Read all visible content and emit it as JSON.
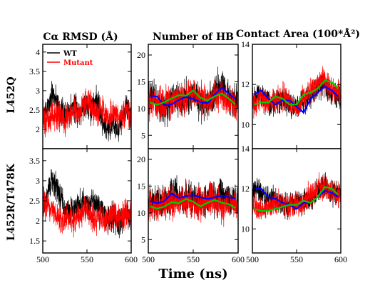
{
  "figure": {
    "xlabel": "Time (ns)",
    "column_titles": [
      "Cα RMSD (Å)",
      "Number of HB",
      "Contact Area (100*Å²)"
    ],
    "row_labels": [
      "L452Q",
      "L452R/T478K"
    ]
  },
  "colors": {
    "wt": "#000000",
    "mutant": "#ff0000",
    "wt_smooth": "#0000ff",
    "mutant_smooth": "#00cc00"
  },
  "chart_data": [
    {
      "type": "line",
      "row": "L452Q",
      "column": "Cα RMSD (Å)",
      "xlim": [
        500,
        600
      ],
      "ylim": [
        1.5,
        4.2
      ],
      "xticks": [
        500,
        550,
        600
      ],
      "yticks": [
        2,
        2.5,
        3,
        3.5,
        4
      ],
      "legend": {
        "placement": "top-left",
        "entries": [
          "WT",
          "Mutant"
        ]
      },
      "series": [
        {
          "name": "WT",
          "color": "#000000",
          "noise": 0.55,
          "x": [
            500,
            505,
            510,
            515,
            520,
            525,
            530,
            535,
            540,
            545,
            550,
            555,
            560,
            565,
            570,
            575,
            580,
            585,
            590,
            595,
            600
          ],
          "y": [
            2.4,
            2.5,
            2.9,
            2.8,
            2.5,
            2.3,
            2.5,
            2.6,
            2.4,
            2.6,
            2.7,
            2.5,
            2.8,
            2.4,
            2.1,
            2.0,
            2.2,
            2.0,
            2.3,
            2.6,
            2.3
          ]
        },
        {
          "name": "Mutant",
          "color": "#ff0000",
          "noise": 0.55,
          "x": [
            500,
            505,
            510,
            515,
            520,
            525,
            530,
            535,
            540,
            545,
            550,
            555,
            560,
            565,
            570,
            575,
            580,
            585,
            590,
            595,
            600
          ],
          "y": [
            2.3,
            2.2,
            2.3,
            2.4,
            2.3,
            2.2,
            2.4,
            2.5,
            2.4,
            2.6,
            2.8,
            2.6,
            2.4,
            2.5,
            2.4,
            2.3,
            2.4,
            2.3,
            2.4,
            2.5,
            2.4
          ]
        }
      ]
    },
    {
      "type": "line",
      "row": "L452Q",
      "column": "Number of HB",
      "xlim": [
        500,
        600
      ],
      "ylim": [
        2.5,
        22
      ],
      "xticks": [
        500,
        550,
        600
      ],
      "yticks": [
        5,
        10,
        15,
        20
      ],
      "series": [
        {
          "name": "WT",
          "color": "#000000",
          "noise": 4.5,
          "x": [
            500,
            505,
            510,
            515,
            520,
            525,
            530,
            535,
            540,
            545,
            550,
            555,
            560,
            565,
            570,
            575,
            580,
            585,
            590,
            595,
            600
          ],
          "y": [
            12,
            12.5,
            11,
            10,
            10.5,
            11.5,
            12,
            11,
            12,
            12,
            12.5,
            11.5,
            11,
            11,
            12,
            13,
            14,
            13,
            12,
            11.5,
            11.5
          ]
        },
        {
          "name": "Mutant",
          "color": "#ff0000",
          "noise": 4.5,
          "x": [
            500,
            505,
            510,
            515,
            520,
            525,
            530,
            535,
            540,
            545,
            550,
            555,
            560,
            565,
            570,
            575,
            580,
            585,
            590,
            595,
            600
          ],
          "y": [
            11,
            11,
            11,
            10.5,
            11,
            11.5,
            12,
            12.5,
            12,
            12.5,
            13,
            12,
            11.5,
            11.5,
            12,
            12.5,
            12.5,
            12,
            11.5,
            11,
            11
          ]
        },
        {
          "name": "WT",
          "color": "#0000ff",
          "width": 2.2,
          "x": [
            502,
            510,
            518,
            526,
            534,
            542,
            550,
            558,
            566,
            574,
            582,
            590,
            597
          ],
          "y": [
            12.4,
            12.2,
            10.6,
            10.8,
            11.6,
            12.2,
            11.8,
            11.2,
            11.0,
            12.6,
            13.9,
            12.7,
            11.8
          ]
        },
        {
          "name": "Mutant",
          "color": "#00cc00",
          "width": 2.2,
          "x": [
            502,
            510,
            518,
            526,
            534,
            542,
            550,
            558,
            566,
            574,
            582,
            590,
            597
          ],
          "y": [
            11.1,
            10.7,
            11.2,
            11.9,
            12.5,
            12.4,
            13.4,
            12.0,
            11.5,
            12.3,
            12.8,
            11.8,
            10.8
          ]
        }
      ]
    },
    {
      "type": "line",
      "row": "L452Q",
      "column": "Contact Area (100*Å²)",
      "xlim": [
        500,
        600
      ],
      "ylim": [
        8.8,
        14
      ],
      "xticks": [
        500,
        550,
        600
      ],
      "yticks": [
        10,
        12,
        14
      ],
      "series": [
        {
          "name": "WT",
          "color": "#000000",
          "noise": 0.9,
          "x": [
            500,
            505,
            510,
            515,
            520,
            525,
            530,
            535,
            540,
            545,
            550,
            555,
            560,
            565,
            570,
            575,
            580,
            585,
            590,
            595,
            600
          ],
          "y": [
            11.2,
            11.5,
            11.5,
            11.2,
            11.0,
            11.1,
            11.2,
            11.3,
            11.0,
            10.9,
            10.8,
            11.0,
            11.2,
            11.4,
            11.6,
            11.9,
            12.0,
            11.7,
            11.5,
            11.4,
            11.3
          ]
        },
        {
          "name": "Mutant",
          "color": "#ff0000",
          "noise": 0.9,
          "x": [
            500,
            505,
            510,
            515,
            520,
            525,
            530,
            535,
            540,
            545,
            550,
            555,
            560,
            565,
            570,
            575,
            580,
            585,
            590,
            595,
            600
          ],
          "y": [
            11.0,
            11.1,
            11.3,
            11.1,
            11.0,
            11.2,
            11.3,
            11.4,
            11.2,
            11.0,
            10.8,
            11.2,
            11.4,
            11.6,
            11.8,
            12.1,
            12.2,
            12.0,
            11.8,
            11.6,
            11.5
          ]
        },
        {
          "name": "WT",
          "color": "#0000ff",
          "width": 2.2,
          "x": [
            502,
            510,
            518,
            526,
            534,
            542,
            550,
            558,
            566,
            574,
            582,
            590,
            597
          ],
          "y": [
            11.5,
            11.7,
            11.3,
            11.0,
            11.2,
            11.2,
            10.9,
            10.6,
            11.3,
            11.6,
            11.9,
            11.7,
            11.4
          ]
        },
        {
          "name": "Mutant",
          "color": "#00cc00",
          "width": 2.2,
          "x": [
            502,
            510,
            518,
            526,
            534,
            542,
            550,
            558,
            566,
            574,
            582,
            590,
            597
          ],
          "y": [
            11.0,
            11.1,
            11.1,
            11.4,
            11.3,
            11.0,
            11.0,
            11.5,
            11.6,
            11.8,
            12.2,
            12.1,
            11.8
          ]
        }
      ]
    },
    {
      "type": "line",
      "row": "L452R/T478K",
      "column": "Cα RMSD (Å)",
      "xlim": [
        500,
        600
      ],
      "ylim": [
        1.2,
        3.8
      ],
      "xticks": [
        500,
        550,
        600
      ],
      "yticks": [
        1.5,
        2,
        2.5,
        3,
        3.5
      ],
      "series": [
        {
          "name": "WT",
          "color": "#000000",
          "noise": 0.5,
          "x": [
            500,
            505,
            510,
            515,
            520,
            525,
            530,
            535,
            540,
            545,
            550,
            555,
            560,
            565,
            570,
            575,
            580,
            585,
            590,
            595,
            600
          ],
          "y": [
            2.5,
            2.6,
            3.0,
            2.9,
            2.6,
            2.3,
            2.2,
            2.3,
            2.4,
            2.5,
            2.4,
            2.5,
            2.4,
            2.3,
            2.2,
            2.0,
            2.1,
            1.9,
            2.0,
            2.2,
            2.0
          ]
        },
        {
          "name": "Mutant",
          "color": "#ff0000",
          "noise": 0.5,
          "x": [
            500,
            505,
            510,
            515,
            520,
            525,
            530,
            535,
            540,
            545,
            550,
            555,
            560,
            565,
            570,
            575,
            580,
            585,
            590,
            595,
            600
          ],
          "y": [
            2.4,
            2.4,
            2.3,
            2.1,
            2.0,
            2.0,
            2.1,
            2.0,
            2.1,
            2.2,
            2.3,
            2.1,
            2.0,
            2.1,
            2.0,
            2.1,
            2.2,
            2.1,
            2.1,
            2.2,
            2.1
          ]
        }
      ]
    },
    {
      "type": "line",
      "row": "L452R/T478K",
      "column": "Number of HB",
      "xlim": [
        500,
        600
      ],
      "ylim": [
        2.5,
        22
      ],
      "xticks": [
        500,
        550,
        600
      ],
      "yticks": [
        5,
        10,
        15,
        20
      ],
      "series": [
        {
          "name": "WT",
          "color": "#000000",
          "noise": 4.5,
          "x": [
            500,
            505,
            510,
            515,
            520,
            525,
            530,
            535,
            540,
            545,
            550,
            555,
            560,
            565,
            570,
            575,
            580,
            585,
            590,
            595,
            600
          ],
          "y": [
            12,
            11.5,
            11.5,
            12,
            12.5,
            13,
            13.5,
            13,
            12.5,
            13,
            13,
            12.5,
            12.5,
            12.5,
            13,
            13,
            13.5,
            13,
            12.5,
            12.5,
            12.5
          ]
        },
        {
          "name": "Mutant",
          "color": "#ff0000",
          "noise": 4.5,
          "x": [
            500,
            505,
            510,
            515,
            520,
            525,
            530,
            535,
            540,
            545,
            550,
            555,
            560,
            565,
            570,
            575,
            580,
            585,
            590,
            595,
            600
          ],
          "y": [
            11.5,
            11,
            11,
            11.5,
            12,
            12,
            12.5,
            12,
            12,
            12.5,
            12,
            11.5,
            12,
            12.5,
            12.5,
            12,
            11.5,
            11.5,
            11.5,
            11.5,
            11
          ]
        },
        {
          "name": "WT",
          "color": "#0000ff",
          "width": 2.2,
          "x": [
            502,
            510,
            518,
            526,
            534,
            542,
            550,
            558,
            566,
            574,
            582,
            590,
            597
          ],
          "y": [
            12.2,
            11.8,
            12.2,
            13.6,
            12.8,
            13.1,
            13.3,
            12.9,
            12.6,
            12.9,
            13.2,
            12.9,
            12.7
          ]
        },
        {
          "name": "Mutant",
          "color": "#00cc00",
          "width": 2.2,
          "x": [
            502,
            510,
            518,
            526,
            534,
            542,
            550,
            558,
            566,
            574,
            582,
            590,
            597
          ],
          "y": [
            11.2,
            10.8,
            11.2,
            12.0,
            11.8,
            12.6,
            12.1,
            11.2,
            11.9,
            12.4,
            11.9,
            11.6,
            10.9
          ]
        }
      ]
    },
    {
      "type": "line",
      "row": "L452R/T478K",
      "column": "Contact Area (100*Å²)",
      "xlim": [
        500,
        600
      ],
      "ylim": [
        8.8,
        14
      ],
      "xticks": [
        500,
        550,
        600
      ],
      "yticks": [
        10,
        12,
        14
      ],
      "series": [
        {
          "name": "WT",
          "color": "#000000",
          "noise": 0.9,
          "x": [
            500,
            505,
            510,
            515,
            520,
            525,
            530,
            535,
            540,
            545,
            550,
            555,
            560,
            565,
            570,
            575,
            580,
            585,
            590,
            595,
            600
          ],
          "y": [
            11.8,
            12.0,
            11.8,
            11.5,
            11.6,
            11.5,
            11.3,
            11.2,
            11.1,
            11.2,
            11.3,
            11.3,
            11.4,
            11.5,
            11.6,
            11.9,
            12.1,
            12.0,
            11.8,
            11.7,
            11.6
          ]
        },
        {
          "name": "Mutant",
          "color": "#ff0000",
          "noise": 0.9,
          "x": [
            500,
            505,
            510,
            515,
            520,
            525,
            530,
            535,
            540,
            545,
            550,
            555,
            560,
            565,
            570,
            575,
            580,
            585,
            590,
            595,
            600
          ],
          "y": [
            11.2,
            11.0,
            10.9,
            11.1,
            11.2,
            11.2,
            11.3,
            11.2,
            11.1,
            11.2,
            11.3,
            11.2,
            11.4,
            11.6,
            11.8,
            12.0,
            12.1,
            12.0,
            11.9,
            11.8,
            11.6
          ]
        },
        {
          "name": "WT",
          "color": "#0000ff",
          "width": 2.2,
          "x": [
            502,
            510,
            518,
            526,
            534,
            542,
            550,
            558,
            566,
            574,
            582,
            590,
            597
          ],
          "y": [
            12.0,
            12.0,
            11.6,
            11.5,
            11.3,
            11.2,
            11.0,
            11.3,
            11.3,
            11.6,
            11.9,
            11.8,
            11.6
          ]
        },
        {
          "name": "Mutant",
          "color": "#00cc00",
          "width": 2.2,
          "x": [
            502,
            510,
            518,
            526,
            534,
            542,
            550,
            558,
            566,
            574,
            582,
            590,
            597
          ],
          "y": [
            11.0,
            10.9,
            10.9,
            11.0,
            11.1,
            11.2,
            11.2,
            11.4,
            11.3,
            11.6,
            12.1,
            12.0,
            11.7
          ]
        }
      ]
    }
  ]
}
